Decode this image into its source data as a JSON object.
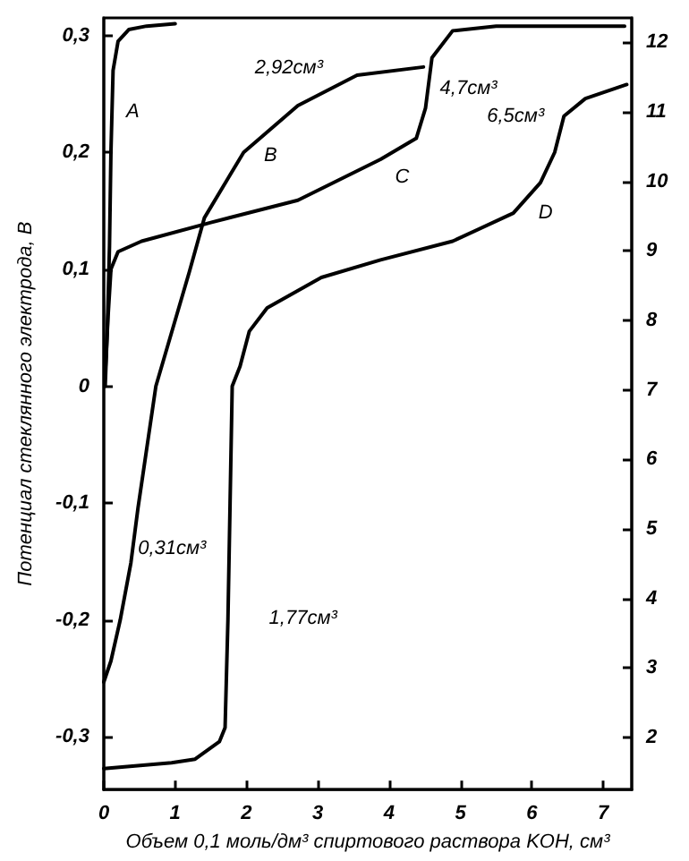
{
  "chart_data": {
    "type": "line",
    "xlabel": "Объем 0,1 моль/дм³ спиртового раствора KOH, см³",
    "ylabel": "Потенциал стеклянного электрода, В",
    "xlim": [
      0,
      7.4
    ],
    "xticks": [
      0,
      1,
      2,
      3,
      4,
      5,
      6,
      7
    ],
    "ylim": [
      -0.345,
      0.315
    ],
    "yticks": [
      {
        "value": -0.3,
        "label": "-0,3"
      },
      {
        "value": -0.2,
        "label": "-0,2"
      },
      {
        "value": -0.1,
        "label": "-0,1"
      },
      {
        "value": 0,
        "label": "0"
      },
      {
        "value": 0.1,
        "label": "0,1"
      },
      {
        "value": 0.2,
        "label": "0,2"
      },
      {
        "value": 0.3,
        "label": "0,3"
      }
    ],
    "y2lim": [
      1.25,
      12.35
    ],
    "y2ticks": [
      2,
      3,
      4,
      5,
      6,
      7,
      8,
      9,
      10,
      11,
      12
    ],
    "grid": false,
    "marker": "none",
    "line_style": "solid",
    "series": [
      {
        "color": "#000000",
        "x": [
          0.02,
          0.05,
          0.08,
          0.1,
          0.13,
          0.2,
          0.35,
          0.6,
          1.0
        ],
        "values": [
          0.0,
          0.05,
          0.12,
          0.2,
          0.27,
          0.295,
          0.305,
          0.308,
          0.31
        ]
      },
      {
        "color": "#000000",
        "x": [
          0,
          0.1,
          0.23,
          0.38,
          0.48,
          0.73,
          1.2,
          1.41,
          1.96,
          2.72,
          3.55,
          4.48
        ],
        "values": [
          -0.253,
          -0.235,
          -0.2,
          -0.151,
          -0.104,
          0.0,
          0.098,
          0.144,
          0.2,
          0.24,
          0.266,
          0.273
        ]
      },
      {
        "color": "#000000",
        "x": [
          0.02,
          0.06,
          0.1,
          0.2,
          0.53,
          1.5,
          2.72,
          3.88,
          4.38,
          4.51,
          4.6,
          4.89,
          5.5,
          7.3
        ],
        "values": [
          0.01,
          0.06,
          0.1,
          0.115,
          0.124,
          0.14,
          0.159,
          0.194,
          0.212,
          0.238,
          0.281,
          0.304,
          0.308,
          0.308
        ]
      },
      {
        "color": "#000000",
        "x": [
          0,
          0.95,
          1.28,
          1.62,
          1.7,
          1.74,
          1.77,
          1.8,
          1.91,
          2.04,
          2.29,
          3.05,
          3.88,
          4.89,
          5.74,
          6.12,
          6.32,
          6.45,
          6.75,
          7.33
        ],
        "values": [
          -0.327,
          -0.322,
          -0.319,
          -0.304,
          -0.292,
          -0.2,
          -0.1,
          0.0,
          0.017,
          0.047,
          0.067,
          0.093,
          0.108,
          0.124,
          0.148,
          0.174,
          0.2,
          0.231,
          0.246,
          0.258
        ]
      }
    ],
    "annotations": [
      {
        "text": "A",
        "x": 0.13,
        "y": 0.27
      },
      {
        "text": "B",
        "x": 1.96,
        "y": 0.2
      },
      {
        "text": "C",
        "x": 3.88,
        "y": 0.194
      },
      {
        "text": "D",
        "x": 5.74,
        "y": 0.148
      },
      {
        "text": "2,92см³",
        "x": 2.72,
        "y": 0.24
      },
      {
        "text": "4,7см³",
        "x": 4.51,
        "y": 0.238
      },
      {
        "text": "6,5см³",
        "x": 6.45,
        "y": 0.231
      },
      {
        "text": "0,31см³",
        "x": 0.38,
        "y": -0.151
      },
      {
        "text": "1,77см³",
        "x": 1.74,
        "y": -0.2
      }
    ]
  }
}
